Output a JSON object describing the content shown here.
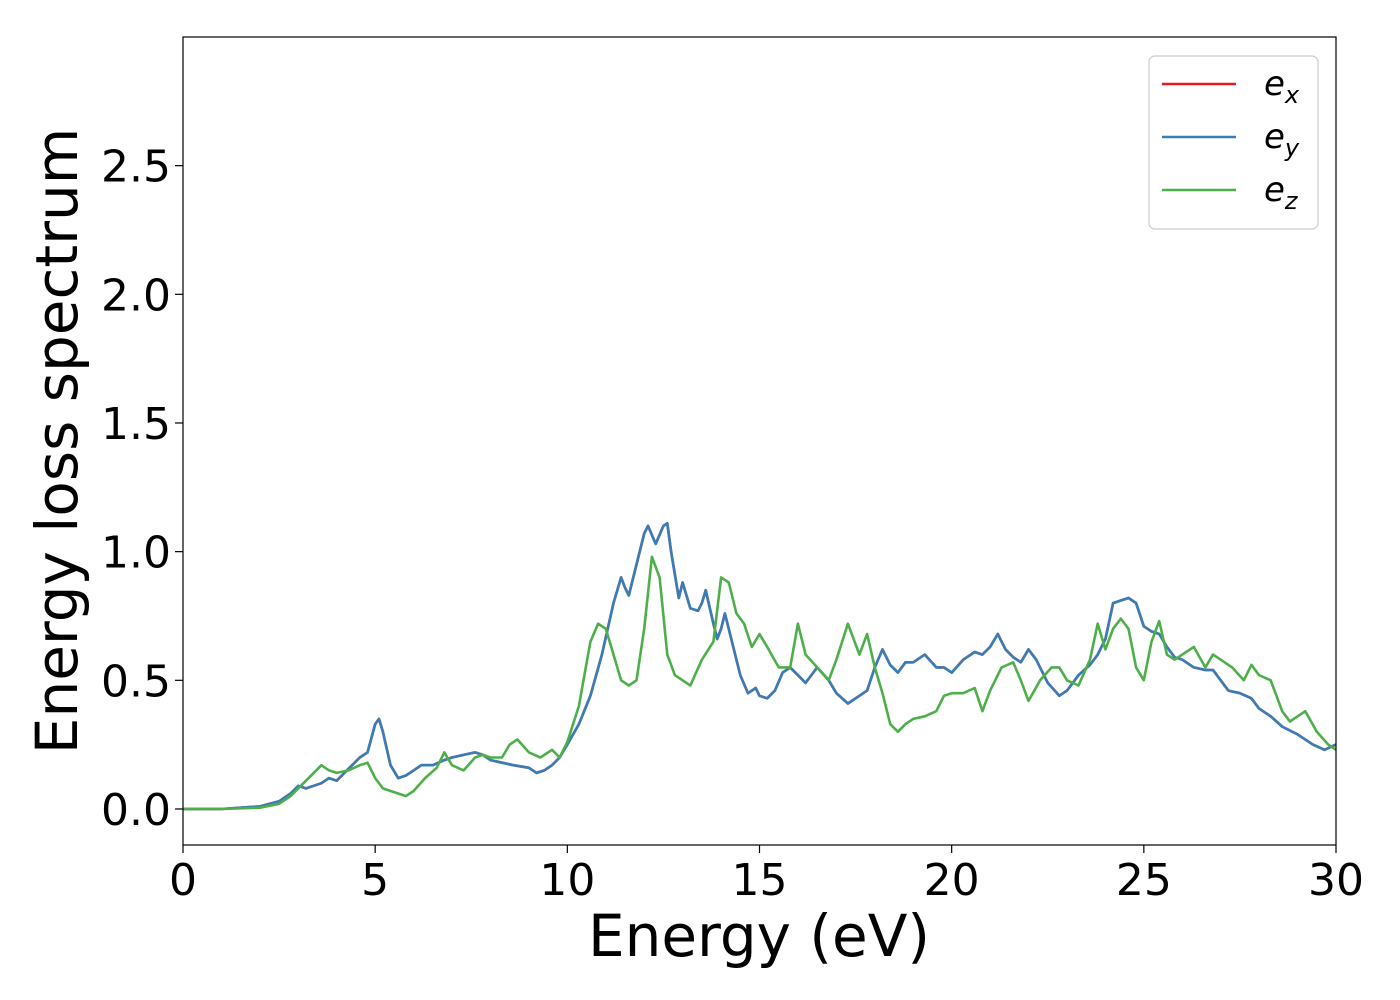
{
  "chart_data": {
    "type": "line",
    "title": "",
    "xlabel": "Energy (eV)",
    "ylabel": "Energy loss spectrum",
    "xlim": [
      0,
      30
    ],
    "ylim": [
      -0.14,
      3.0
    ],
    "x_ticks": [
      0,
      5,
      10,
      15,
      20,
      25,
      30
    ],
    "x_tick_labels": [
      "0",
      "5",
      "10",
      "15",
      "20",
      "25",
      "30"
    ],
    "y_ticks": [
      0.0,
      0.5,
      1.0,
      1.5,
      2.0,
      2.5
    ],
    "y_tick_labels": [
      "0.0",
      "0.5",
      "1.0",
      "1.5",
      "2.0",
      "2.5"
    ],
    "grid": false,
    "legend_position": "top-right",
    "series": [
      {
        "name": "e_x",
        "label_main": "e",
        "label_sub": "x",
        "color": "#e41a1c",
        "x": [
          0,
          1,
          2,
          2.5,
          2.8,
          3.0,
          3.2,
          3.4,
          3.6,
          3.8,
          4.0,
          4.2,
          4.4,
          4.6,
          4.8,
          5.0,
          5.1,
          5.2,
          5.4,
          5.6,
          5.8,
          6.0,
          6.2,
          6.5,
          6.8,
          7.0,
          7.3,
          7.6,
          7.8,
          8.0,
          8.3,
          8.6,
          9.0,
          9.2,
          9.4,
          9.6,
          9.8,
          10.0,
          10.3,
          10.6,
          10.9,
          11.2,
          11.4,
          11.5,
          11.6,
          11.8,
          12.0,
          12.1,
          12.3,
          12.5,
          12.6,
          12.7,
          12.9,
          13.0,
          13.2,
          13.4,
          13.5,
          13.6,
          13.8,
          13.9,
          14.0,
          14.1,
          14.3,
          14.5,
          14.7,
          14.9,
          15.0,
          15.2,
          15.4,
          15.6,
          15.8,
          16.0,
          16.2,
          16.5,
          16.8,
          17.0,
          17.3,
          17.6,
          17.8,
          18.0,
          18.2,
          18.4,
          18.6,
          18.8,
          19.0,
          19.3,
          19.6,
          19.8,
          20.0,
          20.3,
          20.6,
          20.8,
          21.0,
          21.2,
          21.4,
          21.6,
          21.8,
          22.0,
          22.2,
          22.5,
          22.8,
          23.0,
          23.3,
          23.6,
          23.8,
          24.0,
          24.2,
          24.4,
          24.6,
          24.8,
          25.0,
          25.2,
          25.4,
          25.6,
          25.8,
          26.0,
          26.3,
          26.6,
          26.8,
          27.0,
          27.2,
          27.5,
          27.8,
          28.0,
          28.3,
          28.6,
          29.0,
          29.4,
          29.7,
          30.0
        ],
        "y": [
          0,
          0,
          0.01,
          0.03,
          0.06,
          0.09,
          0.08,
          0.09,
          0.1,
          0.12,
          0.11,
          0.14,
          0.17,
          0.2,
          0.22,
          0.33,
          0.35,
          0.3,
          0.17,
          0.12,
          0.13,
          0.15,
          0.17,
          0.17,
          0.19,
          0.2,
          0.21,
          0.22,
          0.21,
          0.19,
          0.18,
          0.17,
          0.16,
          0.14,
          0.15,
          0.17,
          0.2,
          0.25,
          0.33,
          0.44,
          0.6,
          0.8,
          0.9,
          0.86,
          0.83,
          0.95,
          1.07,
          1.1,
          1.03,
          1.1,
          1.11,
          1.0,
          0.82,
          0.88,
          0.78,
          0.77,
          0.8,
          0.85,
          0.72,
          0.66,
          0.7,
          0.76,
          0.64,
          0.52,
          0.45,
          0.47,
          0.44,
          0.43,
          0.46,
          0.53,
          0.55,
          0.52,
          0.49,
          0.55,
          0.5,
          0.45,
          0.41,
          0.44,
          0.46,
          0.55,
          0.62,
          0.56,
          0.53,
          0.57,
          0.57,
          0.6,
          0.55,
          0.55,
          0.53,
          0.58,
          0.61,
          0.6,
          0.63,
          0.68,
          0.62,
          0.59,
          0.57,
          0.62,
          0.58,
          0.49,
          0.44,
          0.46,
          0.52,
          0.56,
          0.6,
          0.66,
          0.8,
          0.81,
          0.82,
          0.8,
          0.71,
          0.69,
          0.68,
          0.63,
          0.59,
          0.58,
          0.55,
          0.54,
          0.54,
          0.5,
          0.46,
          0.45,
          0.43,
          0.39,
          0.36,
          0.32,
          0.29,
          0.25,
          0.23,
          0.25
        ]
      },
      {
        "name": "e_y",
        "label_main": "e",
        "label_sub": "y",
        "color": "#377eb8",
        "x": [
          0,
          1,
          2,
          2.5,
          2.8,
          3.0,
          3.2,
          3.4,
          3.6,
          3.8,
          4.0,
          4.2,
          4.4,
          4.6,
          4.8,
          5.0,
          5.1,
          5.2,
          5.4,
          5.6,
          5.8,
          6.0,
          6.2,
          6.5,
          6.8,
          7.0,
          7.3,
          7.6,
          7.8,
          8.0,
          8.3,
          8.6,
          9.0,
          9.2,
          9.4,
          9.6,
          9.8,
          10.0,
          10.3,
          10.6,
          10.9,
          11.2,
          11.4,
          11.5,
          11.6,
          11.8,
          12.0,
          12.1,
          12.3,
          12.5,
          12.6,
          12.7,
          12.9,
          13.0,
          13.2,
          13.4,
          13.5,
          13.6,
          13.8,
          13.9,
          14.0,
          14.1,
          14.3,
          14.5,
          14.7,
          14.9,
          15.0,
          15.2,
          15.4,
          15.6,
          15.8,
          16.0,
          16.2,
          16.5,
          16.8,
          17.0,
          17.3,
          17.6,
          17.8,
          18.0,
          18.2,
          18.4,
          18.6,
          18.8,
          19.0,
          19.3,
          19.6,
          19.8,
          20.0,
          20.3,
          20.6,
          20.8,
          21.0,
          21.2,
          21.4,
          21.6,
          21.8,
          22.0,
          22.2,
          22.5,
          22.8,
          23.0,
          23.3,
          23.6,
          23.8,
          24.0,
          24.2,
          24.4,
          24.6,
          24.8,
          25.0,
          25.2,
          25.4,
          25.6,
          25.8,
          26.0,
          26.3,
          26.6,
          26.8,
          27.0,
          27.2,
          27.5,
          27.8,
          28.0,
          28.3,
          28.6,
          29.0,
          29.4,
          29.7,
          30.0
        ],
        "y": [
          0,
          0,
          0.01,
          0.03,
          0.06,
          0.09,
          0.08,
          0.09,
          0.1,
          0.12,
          0.11,
          0.14,
          0.17,
          0.2,
          0.22,
          0.33,
          0.35,
          0.3,
          0.17,
          0.12,
          0.13,
          0.15,
          0.17,
          0.17,
          0.19,
          0.2,
          0.21,
          0.22,
          0.21,
          0.19,
          0.18,
          0.17,
          0.16,
          0.14,
          0.15,
          0.17,
          0.2,
          0.25,
          0.33,
          0.44,
          0.6,
          0.8,
          0.9,
          0.86,
          0.83,
          0.95,
          1.07,
          1.1,
          1.03,
          1.1,
          1.11,
          1.0,
          0.82,
          0.88,
          0.78,
          0.77,
          0.8,
          0.85,
          0.72,
          0.66,
          0.7,
          0.76,
          0.64,
          0.52,
          0.45,
          0.47,
          0.44,
          0.43,
          0.46,
          0.53,
          0.55,
          0.52,
          0.49,
          0.55,
          0.5,
          0.45,
          0.41,
          0.44,
          0.46,
          0.55,
          0.62,
          0.56,
          0.53,
          0.57,
          0.57,
          0.6,
          0.55,
          0.55,
          0.53,
          0.58,
          0.61,
          0.6,
          0.63,
          0.68,
          0.62,
          0.59,
          0.57,
          0.62,
          0.58,
          0.49,
          0.44,
          0.46,
          0.52,
          0.56,
          0.6,
          0.66,
          0.8,
          0.81,
          0.82,
          0.8,
          0.71,
          0.69,
          0.68,
          0.63,
          0.59,
          0.58,
          0.55,
          0.54,
          0.54,
          0.5,
          0.46,
          0.45,
          0.43,
          0.39,
          0.36,
          0.32,
          0.29,
          0.25,
          0.23,
          0.25
        ]
      },
      {
        "name": "e_z",
        "label_main": "e",
        "label_sub": "z",
        "color": "#4daf4a",
        "x": [
          0,
          1,
          2,
          2.5,
          2.8,
          3.0,
          3.2,
          3.4,
          3.6,
          3.8,
          4.0,
          4.3,
          4.6,
          4.8,
          5.0,
          5.2,
          5.4,
          5.6,
          5.8,
          6.0,
          6.3,
          6.6,
          6.8,
          7.0,
          7.3,
          7.6,
          7.8,
          8.0,
          8.3,
          8.5,
          8.7,
          9.0,
          9.3,
          9.6,
          9.8,
          10.0,
          10.3,
          10.6,
          10.8,
          11.0,
          11.2,
          11.4,
          11.6,
          11.8,
          12.0,
          12.2,
          12.4,
          12.6,
          12.8,
          13.0,
          13.2,
          13.5,
          13.8,
          14.0,
          14.2,
          14.4,
          14.6,
          14.8,
          15.0,
          15.2,
          15.5,
          15.8,
          16.0,
          16.2,
          16.5,
          16.8,
          17.0,
          17.3,
          17.6,
          17.8,
          18.0,
          18.2,
          18.4,
          18.6,
          18.8,
          19.0,
          19.3,
          19.6,
          19.8,
          20.0,
          20.3,
          20.6,
          20.8,
          21.0,
          21.3,
          21.6,
          21.8,
          22.0,
          22.3,
          22.6,
          22.8,
          23.0,
          23.3,
          23.6,
          23.8,
          24.0,
          24.2,
          24.4,
          24.6,
          24.8,
          25.0,
          25.2,
          25.4,
          25.6,
          25.8,
          26.0,
          26.3,
          26.6,
          26.8,
          27.0,
          27.3,
          27.6,
          27.8,
          28.0,
          28.3,
          28.6,
          28.8,
          29.0,
          29.2,
          29.5,
          29.8,
          30.0
        ],
        "y": [
          0,
          0,
          0.005,
          0.02,
          0.05,
          0.08,
          0.11,
          0.14,
          0.17,
          0.15,
          0.14,
          0.15,
          0.17,
          0.18,
          0.12,
          0.08,
          0.07,
          0.06,
          0.05,
          0.07,
          0.12,
          0.16,
          0.22,
          0.17,
          0.15,
          0.2,
          0.21,
          0.2,
          0.2,
          0.25,
          0.27,
          0.22,
          0.2,
          0.23,
          0.2,
          0.26,
          0.4,
          0.65,
          0.72,
          0.7,
          0.6,
          0.5,
          0.48,
          0.5,
          0.7,
          0.98,
          0.9,
          0.6,
          0.52,
          0.5,
          0.48,
          0.58,
          0.65,
          0.9,
          0.88,
          0.76,
          0.72,
          0.63,
          0.68,
          0.63,
          0.55,
          0.55,
          0.72,
          0.6,
          0.55,
          0.5,
          0.58,
          0.72,
          0.6,
          0.68,
          0.55,
          0.45,
          0.33,
          0.3,
          0.33,
          0.35,
          0.36,
          0.38,
          0.44,
          0.45,
          0.45,
          0.47,
          0.38,
          0.46,
          0.55,
          0.57,
          0.5,
          0.42,
          0.5,
          0.55,
          0.55,
          0.5,
          0.48,
          0.58,
          0.72,
          0.62,
          0.7,
          0.74,
          0.7,
          0.55,
          0.5,
          0.65,
          0.73,
          0.6,
          0.58,
          0.6,
          0.63,
          0.55,
          0.6,
          0.58,
          0.55,
          0.5,
          0.56,
          0.52,
          0.5,
          0.38,
          0.34,
          0.36,
          0.38,
          0.3,
          0.25,
          0.23
        ]
      }
    ]
  }
}
